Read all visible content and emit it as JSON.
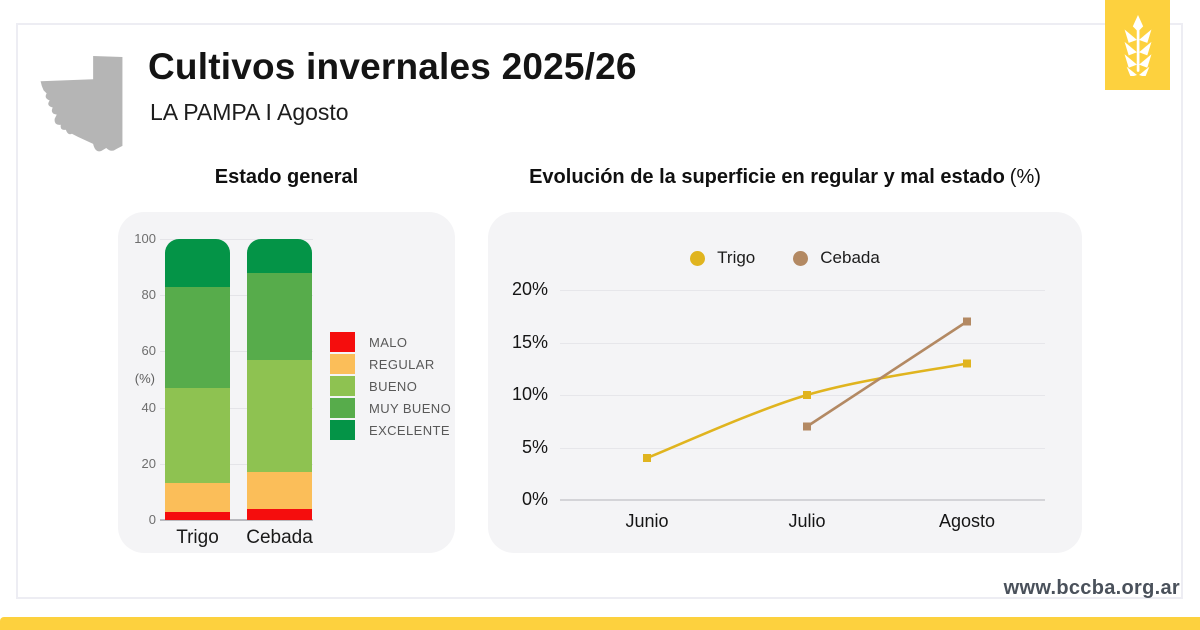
{
  "header": {
    "title": "Cultivos invernales 2025/26",
    "subtitle": "LA PAMPA I Agosto"
  },
  "footer": {
    "website": "www.bccba.org.ar"
  },
  "branding": {
    "accent_yellow": "#FDD13E",
    "map_gray": "#B5B5B5",
    "icons": [
      "wheat-icon",
      "la-pampa-map"
    ]
  },
  "chart_data": [
    {
      "type": "bar",
      "stacked": true,
      "title": "Estado general",
      "ylabel": "(%)",
      "ylim": [
        0,
        100
      ],
      "yticks": [
        0,
        20,
        40,
        60,
        80,
        100
      ],
      "categories": [
        "Trigo",
        "Cebada"
      ],
      "series": [
        {
          "name": "MALO",
          "color": "#F50D0D",
          "values": [
            3,
            4
          ]
        },
        {
          "name": "REGULAR",
          "color": "#FBBE59",
          "values": [
            10,
            13
          ]
        },
        {
          "name": "BUENO",
          "color": "#8EC251",
          "values": [
            34,
            40
          ]
        },
        {
          "name": "MUY BUENO",
          "color": "#57AC4B",
          "values": [
            36,
            31
          ]
        },
        {
          "name": "EXCELENTE",
          "color": "#049447",
          "values": [
            17,
            12
          ]
        }
      ],
      "legend_position": "right",
      "grid": true
    },
    {
      "type": "line",
      "title": "Evolución de la superficie en regular y mal estado",
      "title_suffix": "(%)",
      "x": [
        "Junio",
        "Julio",
        "Agosto"
      ],
      "ylim": [
        0,
        20
      ],
      "ytick_values": [
        0,
        5,
        10,
        15,
        20
      ],
      "ytick_labels": [
        "0%",
        "5%",
        "10%",
        "15%",
        "20%"
      ],
      "series": [
        {
          "name": "Trigo",
          "color": "#E0B41F",
          "values": [
            4,
            10,
            13
          ],
          "smooth": true
        },
        {
          "name": "Cebada",
          "color": "#B38963",
          "values": [
            null,
            7,
            17
          ],
          "smooth": false
        }
      ],
      "legend_position": "top",
      "grid": true
    }
  ]
}
